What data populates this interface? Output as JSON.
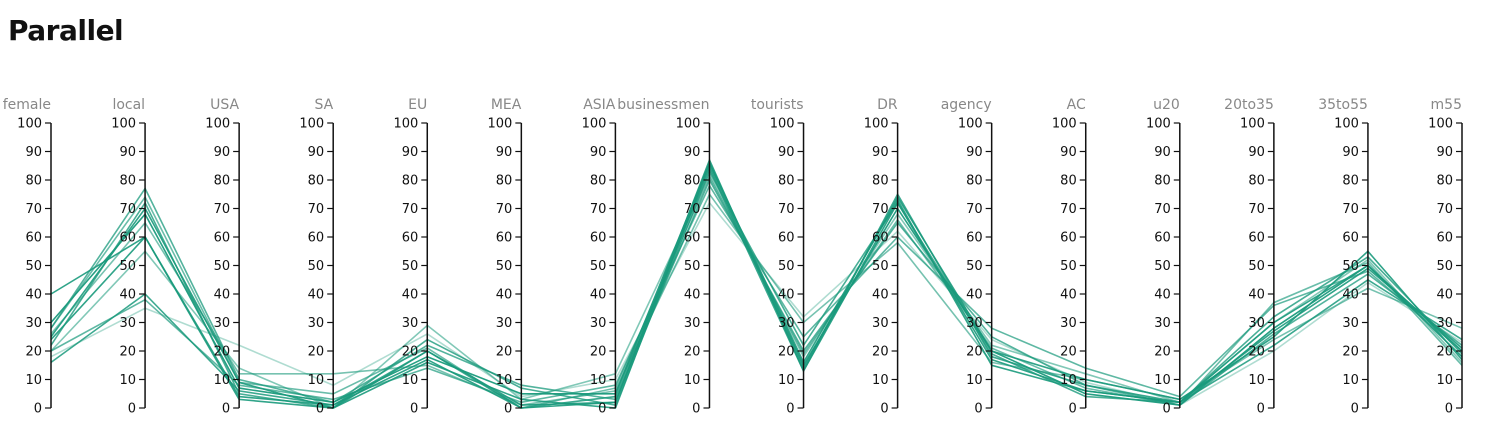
{
  "title": "Parallel",
  "chart_data": {
    "type": "parallel",
    "title": "Parallel",
    "dimensions": [
      "female",
      "local",
      "USA",
      "SA",
      "EU",
      "MEA",
      "ASIA",
      "businessmen",
      "tourists",
      "DR",
      "agency",
      "AC",
      "u20",
      "20to35",
      "35to55",
      "m55"
    ],
    "ylim": [
      0,
      100
    ],
    "ticks": [
      0,
      10,
      20,
      30,
      40,
      50,
      60,
      70,
      80,
      90,
      100
    ],
    "grid": false,
    "line_color": "#1a9a7c",
    "series": [
      {
        "values": [
          40,
          60,
          4,
          1,
          17,
          0,
          2,
          87,
          13,
          72,
          17,
          6,
          2,
          30,
          50,
          20
        ],
        "opacity": 0.9
      },
      {
        "values": [
          28,
          77,
          10,
          2,
          22,
          8,
          3,
          80,
          20,
          65,
          25,
          8,
          1,
          26,
          47,
          22
        ],
        "opacity": 0.75
      },
      {
        "values": [
          25,
          70,
          9,
          0,
          20,
          1,
          2,
          85,
          14,
          74,
          20,
          10,
          3,
          25,
          55,
          17
        ],
        "opacity": 0.9
      },
      {
        "values": [
          20,
          55,
          14,
          0,
          29,
          3,
          12,
          82,
          18,
          68,
          22,
          12,
          2,
          30,
          52,
          16
        ],
        "opacity": 0.55
      },
      {
        "values": [
          16,
          40,
          6,
          1,
          20,
          0,
          4,
          84,
          13,
          75,
          18,
          8,
          2,
          22,
          45,
          24
        ],
        "opacity": 0.85
      },
      {
        "values": [
          20,
          38,
          8,
          3,
          14,
          2,
          8,
          78,
          25,
          60,
          28,
          14,
          4,
          36,
          48,
          20
        ],
        "opacity": 0.7
      },
      {
        "values": [
          30,
          68,
          7,
          2,
          18,
          5,
          5,
          86,
          15,
          70,
          20,
          5,
          1,
          28,
          50,
          18
        ],
        "opacity": 0.95
      },
      {
        "values": [
          26,
          65,
          12,
          12,
          15,
          1,
          6,
          75,
          30,
          58,
          16,
          10,
          3,
          24,
          42,
          28
        ],
        "opacity": 0.6
      },
      {
        "values": [
          22,
          72,
          5,
          0,
          24,
          7,
          1,
          83,
          22,
          72,
          19,
          4,
          2,
          32,
          53,
          19
        ],
        "opacity": 0.8
      },
      {
        "values": [
          18,
          35,
          22,
          8,
          26,
          4,
          10,
          72,
          32,
          62,
          24,
          9,
          1,
          20,
          44,
          23
        ],
        "opacity": 0.35
      },
      {
        "values": [
          24,
          60,
          3,
          0,
          16,
          3,
          0,
          86,
          16,
          73,
          15,
          6,
          2,
          27,
          49,
          21
        ],
        "opacity": 0.9
      },
      {
        "values": [
          28,
          74,
          9,
          5,
          21,
          0,
          7,
          81,
          19,
          66,
          21,
          7,
          1,
          37,
          51,
          15
        ],
        "opacity": 0.65
      }
    ]
  }
}
